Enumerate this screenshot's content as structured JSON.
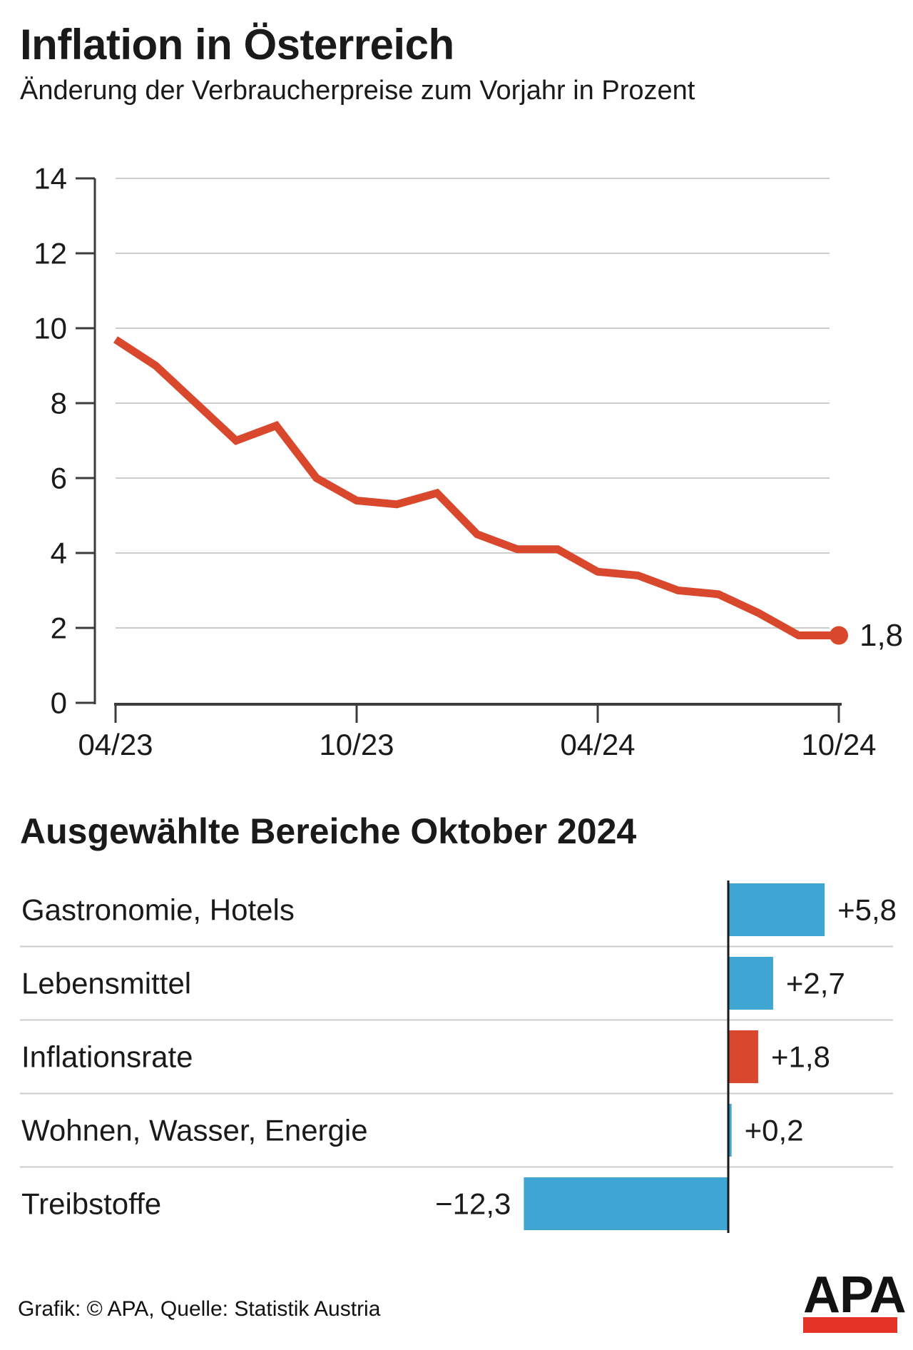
{
  "header": {
    "title": "Inflation in Österreich",
    "subtitle": "Änderung der Verbraucherpreise zum Vorjahr in Prozent"
  },
  "chart_data": [
    {
      "type": "line",
      "title": "Inflation in Österreich",
      "ylabel": "",
      "xlabel": "",
      "x": [
        "04/23",
        "05/23",
        "06/23",
        "07/23",
        "08/23",
        "09/23",
        "10/23",
        "11/23",
        "12/23",
        "01/24",
        "02/24",
        "03/24",
        "04/24",
        "05/24",
        "06/24",
        "07/24",
        "08/24",
        "09/24",
        "10/24"
      ],
      "values": [
        9.7,
        9.0,
        8.0,
        7.0,
        7.4,
        6.0,
        5.4,
        5.3,
        5.6,
        4.5,
        4.1,
        4.1,
        3.5,
        3.4,
        3.0,
        2.9,
        2.4,
        1.8,
        1.8
      ],
      "x_tick_labels": [
        "04/23",
        "10/23",
        "04/24",
        "10/24"
      ],
      "y_ticks": [
        0,
        2,
        4,
        6,
        8,
        10,
        12,
        14
      ],
      "ylim": [
        0,
        14
      ],
      "grid": true,
      "line_color": "#d9482c",
      "end_dot": true,
      "end_label": "1,8"
    },
    {
      "type": "bar",
      "orientation": "horizontal",
      "title": "Ausgewählte Bereiche Oktober 2024",
      "categories": [
        "Gastronomie, Hotels",
        "Lebensmittel",
        "Inflationsrate",
        "Wohnen, Wasser, Energie",
        "Treibstoffe"
      ],
      "values": [
        5.8,
        2.7,
        1.8,
        0.2,
        -12.3
      ],
      "value_labels": [
        "+5,8",
        "+2,7",
        "+1,8",
        "+0,2",
        "−12,3"
      ],
      "bar_colors": [
        "#3fa5d2",
        "#3fa5d2",
        "#d9482c",
        "#3fa5d2",
        "#3fa5d2"
      ],
      "accent_blue": "#3fa5d2",
      "accent_red": "#d9482c",
      "grid": false,
      "legend": "none"
    }
  ],
  "footer": {
    "credit": "Grafik: © APA, Quelle: Statistik Austria",
    "logo_text": "APA"
  }
}
